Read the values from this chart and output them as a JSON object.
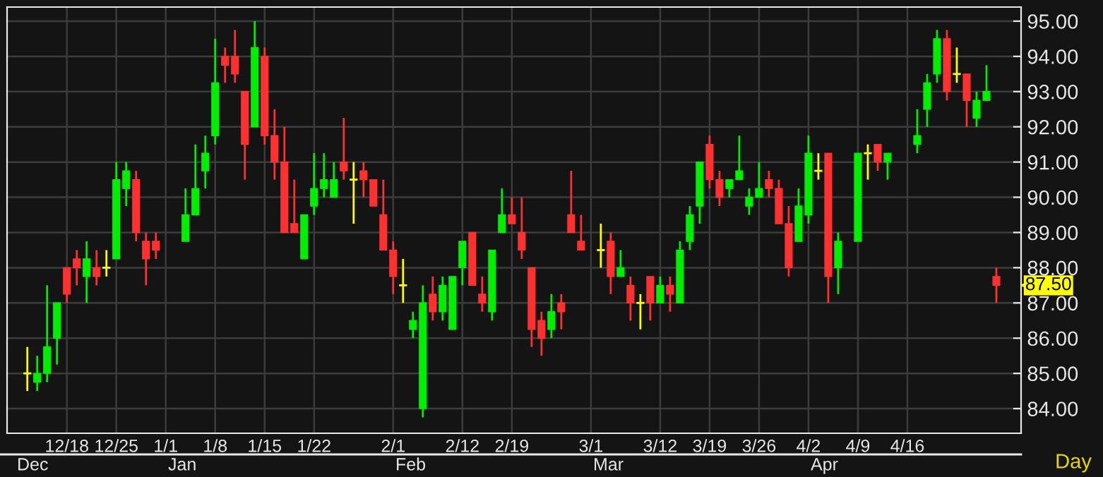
{
  "chart_data": {
    "type": "candlestick",
    "categories": [
      null,
      null,
      null,
      null,
      "12/18",
      null,
      null,
      null,
      null,
      "12/25",
      null,
      null,
      null,
      null,
      "1/1",
      null,
      null,
      null,
      null,
      "1/8",
      null,
      null,
      null,
      null,
      "1/15",
      null,
      null,
      null,
      null,
      "1/22",
      null,
      null,
      null,
      null,
      null,
      null,
      null,
      "2/1",
      null,
      null,
      null,
      null,
      null,
      null,
      "2/12",
      null,
      null,
      null,
      null,
      "2/19",
      null,
      null,
      null,
      null,
      null,
      null,
      null,
      "3/1",
      null,
      null,
      null,
      null,
      null,
      null,
      "3/12",
      null,
      null,
      null,
      null,
      "3/19",
      null,
      null,
      null,
      null,
      "3/26",
      null,
      null,
      null,
      null,
      "4/2",
      null,
      null,
      null,
      null,
      "4/9",
      null,
      null,
      null,
      null,
      "4/16",
      null,
      null,
      null,
      null,
      null,
      null,
      null,
      null,
      null
    ],
    "ohlc": [
      [
        85.0,
        85.75,
        84.5,
        85.0
      ],
      [
        84.75,
        85.5,
        84.5,
        85.0
      ],
      [
        85.0,
        87.5,
        84.75,
        85.75
      ],
      [
        86.0,
        87.0,
        85.25,
        87.0
      ],
      [
        88.0,
        88.0,
        87.0,
        87.25
      ],
      [
        88.25,
        88.5,
        87.5,
        88.0
      ],
      [
        87.75,
        88.75,
        87.0,
        88.25
      ],
      [
        88.0,
        88.5,
        87.5,
        87.75
      ],
      [
        88.0,
        88.5,
        87.75,
        88.0
      ],
      [
        88.25,
        91.0,
        88.25,
        90.5
      ],
      [
        90.25,
        91.0,
        89.75,
        90.75
      ],
      [
        90.5,
        90.75,
        88.75,
        89.0
      ],
      [
        88.75,
        89.0,
        87.5,
        88.25
      ],
      [
        88.75,
        89.0,
        88.25,
        88.5
      ],
      null,
      null,
      [
        88.75,
        90.25,
        88.75,
        89.5
      ],
      [
        89.5,
        91.5,
        89.5,
        90.25
      ],
      [
        90.75,
        91.75,
        90.25,
        91.25
      ],
      [
        91.75,
        94.5,
        91.5,
        93.25
      ],
      [
        94.0,
        94.25,
        93.25,
        93.75
      ],
      [
        94.0,
        94.75,
        93.25,
        93.5
      ],
      [
        93.0,
        93.0,
        90.5,
        91.5
      ],
      [
        92.0,
        95.0,
        92.0,
        94.25
      ],
      [
        94.0,
        94.25,
        91.5,
        91.75
      ],
      [
        91.75,
        92.5,
        90.5,
        91.0
      ],
      [
        91.0,
        92.0,
        89.0,
        89.0
      ],
      [
        89.25,
        90.5,
        89.0,
        89.0
      ],
      [
        88.25,
        89.5,
        88.25,
        89.5
      ],
      [
        89.75,
        91.25,
        89.5,
        90.25
      ],
      [
        90.25,
        91.25,
        90.0,
        90.5
      ],
      [
        90.0,
        91.0,
        90.0,
        90.5
      ],
      [
        91.0,
        92.25,
        90.5,
        90.75
      ],
      [
        90.5,
        91.0,
        89.25,
        90.5
      ],
      [
        90.75,
        91.0,
        90.0,
        90.5
      ],
      [
        90.5,
        90.5,
        89.75,
        89.75
      ],
      [
        89.5,
        90.5,
        88.5,
        88.5
      ],
      [
        88.5,
        88.75,
        87.25,
        87.75
      ],
      [
        87.5,
        88.25,
        87.0,
        87.5
      ],
      [
        86.25,
        86.75,
        86.0,
        86.5
      ],
      [
        84.0,
        87.5,
        83.75,
        87.0
      ],
      [
        87.25,
        87.75,
        86.5,
        86.75
      ],
      [
        86.75,
        87.75,
        86.5,
        87.5
      ],
      [
        86.25,
        87.75,
        86.25,
        87.75
      ],
      [
        88.0,
        88.75,
        87.5,
        88.75
      ],
      [
        89.0,
        89.0,
        87.5,
        87.5
      ],
      [
        87.25,
        87.75,
        86.75,
        87.0
      ],
      [
        86.75,
        88.5,
        86.5,
        88.5
      ],
      [
        89.0,
        90.25,
        89.0,
        89.5
      ],
      [
        89.5,
        90.0,
        89.25,
        89.25
      ],
      [
        89.0,
        90.0,
        88.25,
        88.5
      ],
      [
        88.0,
        88.0,
        85.75,
        86.25
      ],
      [
        86.5,
        86.75,
        85.5,
        86.0
      ],
      [
        86.25,
        87.25,
        86.0,
        86.75
      ],
      [
        87.0,
        87.25,
        86.25,
        86.75
      ],
      [
        89.5,
        90.75,
        89.0,
        89.0
      ],
      [
        88.75,
        89.5,
        88.5,
        88.5
      ],
      null,
      [
        88.5,
        89.25,
        88.0,
        88.5
      ],
      [
        88.75,
        89.0,
        87.25,
        87.75
      ],
      [
        87.75,
        88.5,
        87.75,
        88.0
      ],
      [
        87.5,
        87.75,
        86.5,
        87.0
      ],
      [
        87.0,
        87.25,
        86.25,
        87.0
      ],
      [
        87.75,
        87.75,
        86.5,
        87.0
      ],
      [
        87.0,
        87.75,
        87.0,
        87.5
      ],
      [
        87.5,
        87.75,
        86.75,
        87.25
      ],
      [
        87.0,
        88.75,
        87.0,
        88.5
      ],
      [
        88.75,
        89.75,
        88.5,
        89.5
      ],
      [
        89.75,
        91.0,
        89.25,
        91.0
      ],
      [
        91.5,
        91.75,
        90.25,
        90.5
      ],
      [
        90.5,
        90.75,
        89.75,
        90.0
      ],
      [
        90.25,
        90.5,
        90.0,
        90.5
      ],
      [
        90.5,
        91.75,
        90.5,
        90.75
      ],
      [
        89.75,
        90.25,
        89.5,
        90.0
      ],
      [
        90.0,
        91.0,
        90.0,
        90.25
      ],
      [
        90.5,
        90.75,
        90.0,
        90.25
      ],
      [
        90.25,
        90.5,
        89.25,
        89.25
      ],
      [
        89.25,
        89.75,
        87.75,
        88.0
      ],
      [
        88.75,
        90.25,
        88.75,
        89.75
      ],
      [
        89.5,
        91.75,
        89.25,
        91.25
      ],
      [
        90.75,
        91.25,
        90.5,
        90.75
      ],
      [
        91.25,
        91.25,
        87.0,
        87.75
      ],
      [
        88.0,
        89.0,
        87.25,
        88.75
      ],
      null,
      [
        88.75,
        91.25,
        88.75,
        91.25
      ],
      [
        91.25,
        91.5,
        90.5,
        91.25
      ],
      [
        91.5,
        91.5,
        90.75,
        91.0
      ],
      [
        91.0,
        91.25,
        90.5,
        91.25
      ],
      null,
      null,
      [
        91.5,
        92.5,
        91.25,
        91.75
      ],
      [
        92.5,
        93.5,
        92.0,
        93.25
      ],
      [
        93.5,
        94.75,
        93.25,
        94.5
      ],
      [
        94.5,
        94.75,
        92.75,
        93.0
      ],
      [
        93.5,
        94.25,
        93.25,
        93.5
      ],
      [
        93.5,
        93.5,
        92.0,
        92.75
      ],
      [
        92.25,
        93.0,
        92.0,
        92.75
      ],
      [
        92.75,
        93.75,
        92.75,
        93.0
      ],
      [
        87.75,
        88.0,
        87.0,
        87.5
      ]
    ],
    "colors": [
      "#ffff00",
      "#00ee00",
      "#00ee00",
      "#00ee00",
      "#ff3030",
      "#ff3030",
      "#00ee00",
      "#ff3030",
      "#ffff00",
      "#00ee00",
      "#00ee00",
      "#ff3030",
      "#ff3030",
      "#ff3030",
      null,
      null,
      "#00ee00",
      "#00ee00",
      "#00ee00",
      "#00ee00",
      "#ff3030",
      "#ff3030",
      "#ff3030",
      "#00ee00",
      "#ff3030",
      "#ff3030",
      "#ff3030",
      "#ff3030",
      "#00ee00",
      "#00ee00",
      "#00ee00",
      "#00ee00",
      "#ff3030",
      "#ffff00",
      "#ff3030",
      "#ff3030",
      "#ff3030",
      "#ff3030",
      "#ffff00",
      "#00ee00",
      "#00ee00",
      "#ff3030",
      "#00ee00",
      "#00ee00",
      "#00ee00",
      "#ff3030",
      "#ff3030",
      "#00ee00",
      "#00ee00",
      "#ff3030",
      "#ff3030",
      "#ff3030",
      "#ff3030",
      "#00ee00",
      "#ff3030",
      "#ff3030",
      "#ff3030",
      null,
      "#ffff00",
      "#ff3030",
      "#00ee00",
      "#ff3030",
      "#ffff00",
      "#ff3030",
      "#00ee00",
      "#ff3030",
      "#00ee00",
      "#00ee00",
      "#00ee00",
      "#ff3030",
      "#ff3030",
      "#00ee00",
      "#00ee00",
      "#00ee00",
      "#00ee00",
      "#ff3030",
      "#ff3030",
      "#ff3030",
      "#00ee00",
      "#00ee00",
      "#ffff00",
      "#ff3030",
      "#00ee00",
      null,
      "#00ee00",
      "#ffff00",
      "#ff3030",
      "#00ee00",
      null,
      null,
      "#00ee00",
      "#00ee00",
      "#00ee00",
      "#ff3030",
      "#ffff00",
      "#ff3030",
      "#00ee00",
      "#00ee00",
      "#ff3030"
    ],
    "ylim": [
      83.3,
      95.4
    ],
    "yticks": [
      {
        "value": 84,
        "label": "84.00"
      },
      {
        "value": 85,
        "label": "85.00"
      },
      {
        "value": 86,
        "label": "86.00"
      },
      {
        "value": 87,
        "label": "87.00"
      },
      {
        "value": 88,
        "label": "88.00"
      },
      {
        "value": 89,
        "label": "89.00"
      },
      {
        "value": 90,
        "label": "90.00"
      },
      {
        "value": 91,
        "label": "91.00"
      },
      {
        "value": 92,
        "label": "92.00"
      },
      {
        "value": 93,
        "label": "93.00"
      },
      {
        "value": 94,
        "label": "94.00"
      },
      {
        "value": 95,
        "label": "95.00"
      }
    ],
    "grid": true,
    "xlabel": "Day",
    "annotations": [
      "Dec",
      "Jan",
      "Feb",
      "Mar",
      "Apr",
      "87.50"
    ]
  }
}
